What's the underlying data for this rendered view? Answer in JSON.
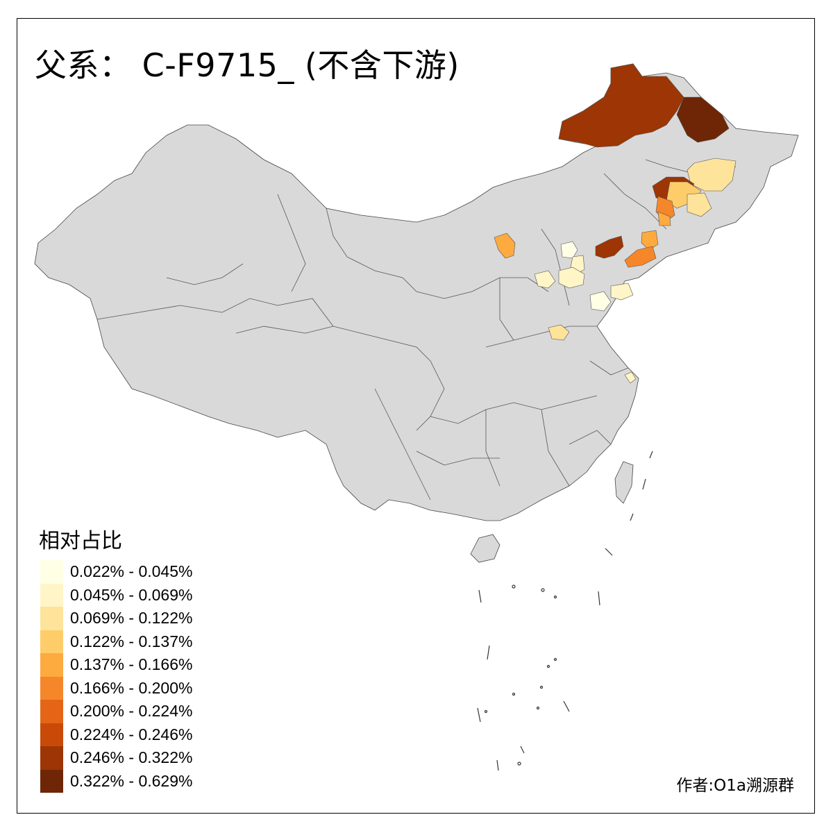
{
  "title": "父系： C-F9715_ (不含下游)",
  "legend": {
    "title": "相对占比",
    "items": [
      {
        "label": "0.022% - 0.045%",
        "color": "#FFFFE6"
      },
      {
        "label": "0.045% - 0.069%",
        "color": "#FFF5C6"
      },
      {
        "label": "0.069% - 0.122%",
        "color": "#FEE39B"
      },
      {
        "label": "0.122% - 0.137%",
        "color": "#FECD69"
      },
      {
        "label": "0.137% - 0.166%",
        "color": "#FDAA3F"
      },
      {
        "label": "0.166% - 0.200%",
        "color": "#F6862A"
      },
      {
        "label": "0.200% - 0.224%",
        "color": "#E56516"
      },
      {
        "label": "0.224% - 0.246%",
        "color": "#C94A08"
      },
      {
        "label": "0.246% - 0.322%",
        "color": "#9D3504"
      },
      {
        "label": "0.322% - 0.629%",
        "color": "#6E2606"
      }
    ]
  },
  "credit": "作者:O1a溯源群",
  "map": {
    "base_color": "#D9D9D9",
    "border_color": "#555555"
  }
}
